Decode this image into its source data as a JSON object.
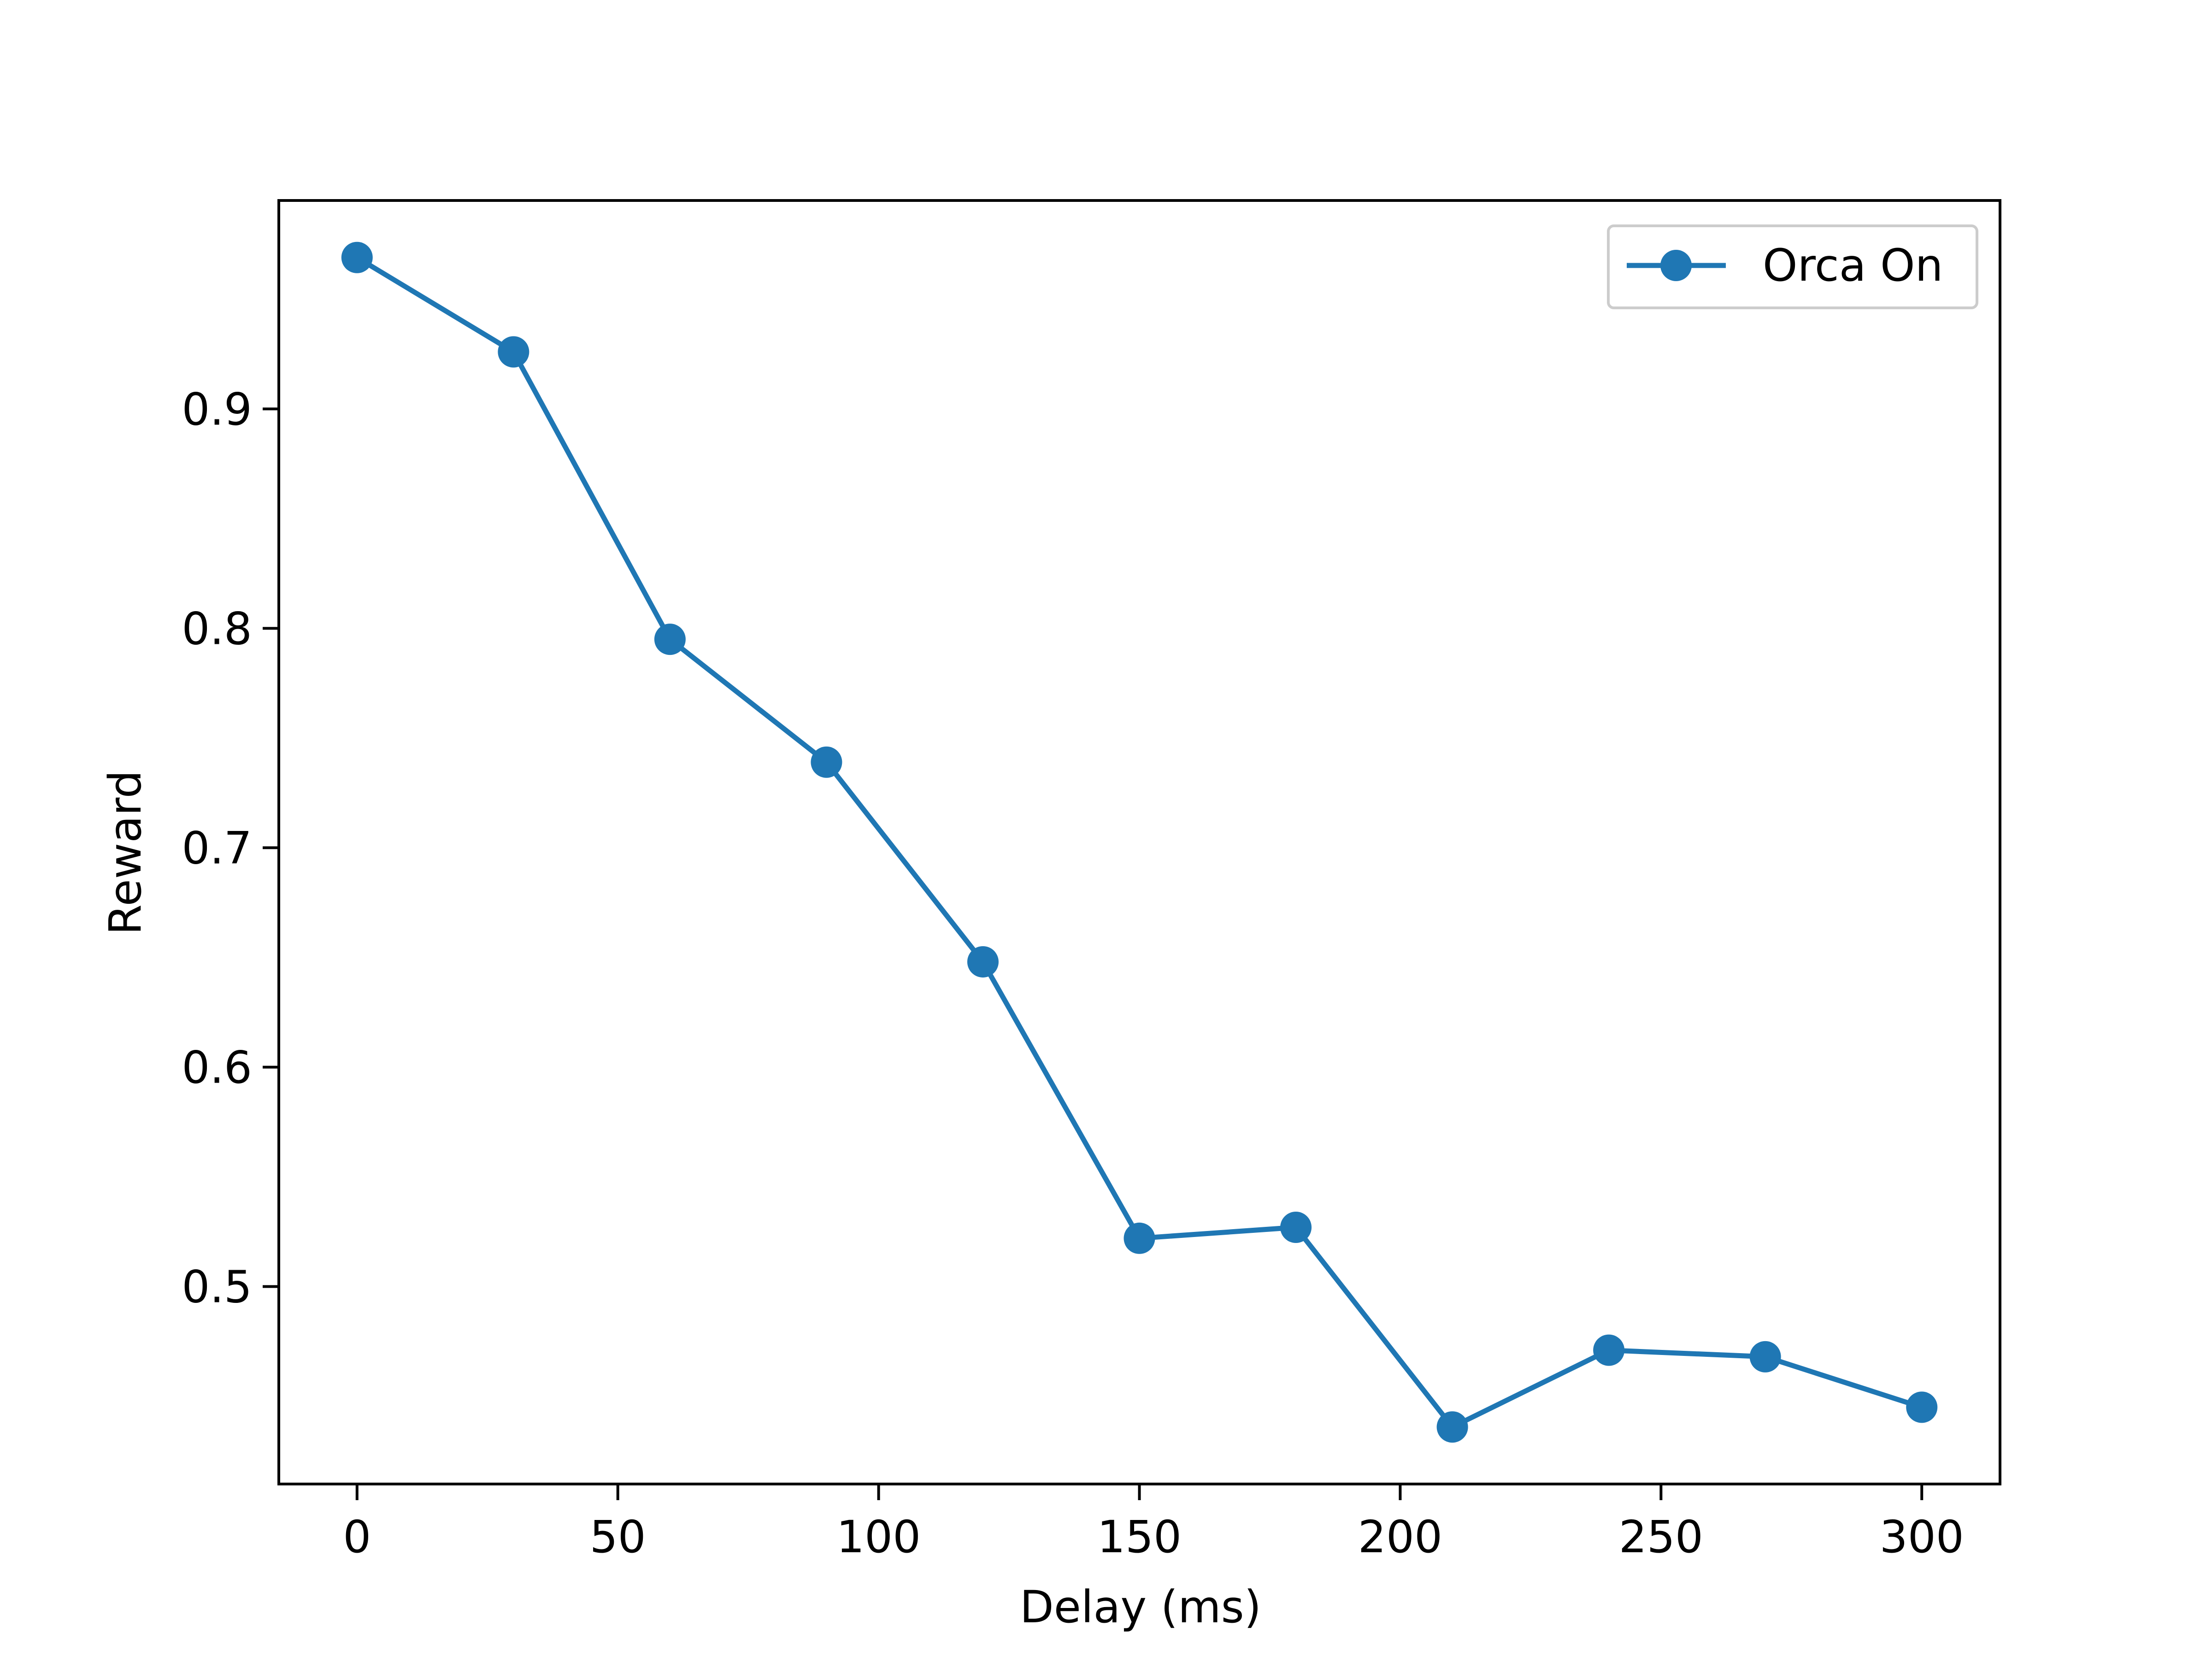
{
  "chart_data": {
    "type": "line",
    "title": "",
    "xlabel": "Delay (ms)",
    "ylabel": "Reward",
    "xlim": [
      -15,
      315
    ],
    "ylim": [
      0.41,
      0.995
    ],
    "xticks": [
      0,
      50,
      100,
      150,
      200,
      250,
      300
    ],
    "yticks": [
      0.5,
      0.6,
      0.7,
      0.8,
      0.9
    ],
    "xtick_labels": [
      "0",
      "50",
      "100",
      "150",
      "200",
      "250",
      "300"
    ],
    "ytick_labels": [
      "0.5",
      "0.6",
      "0.7",
      "0.8",
      "0.9"
    ],
    "grid": false,
    "legend_position": "top-right",
    "series": [
      {
        "name": "Orca On",
        "color": "#1f77b4",
        "marker": "circle",
        "x": [
          0,
          30,
          60,
          90,
          120,
          150,
          180,
          210,
          240,
          270,
          300
        ],
        "y": [
          0.969,
          0.926,
          0.795,
          0.739,
          0.648,
          0.522,
          0.527,
          0.436,
          0.471,
          0.468,
          0.445
        ]
      }
    ]
  }
}
